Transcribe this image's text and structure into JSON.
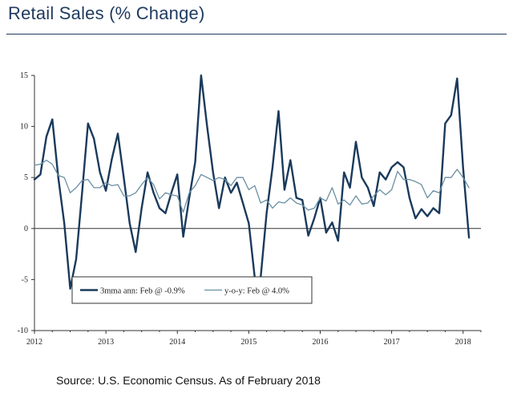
{
  "title": "Retail Sales (% Change)",
  "source": "Source: U.S. Economic Census. As of February 2018",
  "chart_data": {
    "type": "line",
    "title": "Retail Sales (% Change)",
    "xlabel": "",
    "ylabel": "",
    "ylim": [
      -10,
      15
    ],
    "yticks": [
      "-10",
      "-5",
      "0",
      "5",
      "10",
      "15"
    ],
    "xlim": [
      2012.0,
      2018.25
    ],
    "xticks": [
      "2012",
      "2013",
      "2014",
      "2015",
      "2016",
      "2017",
      "2018"
    ],
    "grid": false,
    "legend_position": "lower-left inside",
    "colors": {
      "mma": "#1a3a5c",
      "yoy": "#6a8fa3"
    },
    "series": [
      {
        "name": "3mma ann: Feb @ -0.9%",
        "x": [
          2012.0,
          2012.083,
          2012.167,
          2012.25,
          2012.333,
          2012.417,
          2012.5,
          2012.583,
          2012.667,
          2012.75,
          2012.833,
          2012.917,
          2013.0,
          2013.083,
          2013.167,
          2013.25,
          2013.333,
          2013.417,
          2013.5,
          2013.583,
          2013.667,
          2013.75,
          2013.833,
          2013.917,
          2014.0,
          2014.083,
          2014.167,
          2014.25,
          2014.333,
          2014.417,
          2014.5,
          2014.583,
          2014.667,
          2014.75,
          2014.833,
          2014.917,
          2015.0,
          2015.083,
          2015.167,
          2015.25,
          2015.333,
          2015.417,
          2015.5,
          2015.583,
          2015.667,
          2015.75,
          2015.833,
          2015.917,
          2016.0,
          2016.083,
          2016.167,
          2016.25,
          2016.333,
          2016.417,
          2016.5,
          2016.583,
          2016.667,
          2016.75,
          2016.833,
          2016.917,
          2017.0,
          2017.083,
          2017.167,
          2017.25,
          2017.333,
          2017.417,
          2017.5,
          2017.583,
          2017.667,
          2017.75,
          2017.833,
          2017.917,
          2018.0,
          2018.083
        ],
        "values": [
          4.8,
          5.3,
          9.0,
          10.7,
          5.0,
          0.5,
          -5.9,
          -3.0,
          3.5,
          10.3,
          8.8,
          5.5,
          3.7,
          6.8,
          9.3,
          5.0,
          0.5,
          -2.3,
          2.0,
          5.5,
          3.5,
          2.0,
          1.5,
          3.5,
          5.3,
          -0.8,
          3.0,
          6.5,
          15.0,
          10.0,
          5.5,
          2.0,
          5.0,
          3.5,
          4.5,
          2.5,
          0.5,
          -4.8,
          -4.8,
          1.5,
          6.0,
          11.5,
          3.8,
          6.7,
          3.0,
          2.8,
          -0.7,
          1.0,
          3.0,
          -0.4,
          0.6,
          -1.2,
          5.5,
          4.0,
          8.5,
          5.0,
          4.0,
          2.2,
          5.5,
          4.8,
          6.0,
          6.5,
          6.0,
          3.0,
          1.0,
          1.9,
          1.2,
          2.0,
          1.5,
          10.3,
          11.1,
          14.7,
          6.0,
          -0.9
        ]
      },
      {
        "name": "y-o-y: Feb @ 4.0%",
        "x": [
          2012.0,
          2012.083,
          2012.167,
          2012.25,
          2012.333,
          2012.417,
          2012.5,
          2012.583,
          2012.667,
          2012.75,
          2012.833,
          2012.917,
          2013.0,
          2013.083,
          2013.167,
          2013.25,
          2013.333,
          2013.417,
          2013.5,
          2013.583,
          2013.667,
          2013.75,
          2013.833,
          2013.917,
          2014.0,
          2014.083,
          2014.167,
          2014.25,
          2014.333,
          2014.417,
          2014.5,
          2014.583,
          2014.667,
          2014.75,
          2014.833,
          2014.917,
          2015.0,
          2015.083,
          2015.167,
          2015.25,
          2015.333,
          2015.417,
          2015.5,
          2015.583,
          2015.667,
          2015.75,
          2015.833,
          2015.917,
          2016.0,
          2016.083,
          2016.167,
          2016.25,
          2016.333,
          2016.417,
          2016.5,
          2016.583,
          2016.667,
          2016.75,
          2016.833,
          2016.917,
          2017.0,
          2017.083,
          2017.167,
          2017.25,
          2017.333,
          2017.417,
          2017.5,
          2017.583,
          2017.667,
          2017.75,
          2017.833,
          2017.917,
          2018.0,
          2018.083
        ],
        "values": [
          6.2,
          6.3,
          6.7,
          6.3,
          5.2,
          5.0,
          3.5,
          4.0,
          4.7,
          4.8,
          4.0,
          4.0,
          4.5,
          4.2,
          4.3,
          3.2,
          3.2,
          3.5,
          4.3,
          5.0,
          4.3,
          2.9,
          3.5,
          3.3,
          3.2,
          1.6,
          3.5,
          4.2,
          5.3,
          5.0,
          4.7,
          5.0,
          4.8,
          4.2,
          5.0,
          5.0,
          3.8,
          4.2,
          2.5,
          2.8,
          2.0,
          2.6,
          2.5,
          3.0,
          2.5,
          2.3,
          1.8,
          2.0,
          3.0,
          2.7,
          4.0,
          2.4,
          2.8,
          2.3,
          3.2,
          2.4,
          2.5,
          3.2,
          3.8,
          3.3,
          3.8,
          5.6,
          4.8,
          4.8,
          4.6,
          4.3,
          3.0,
          3.7,
          3.5,
          5.0,
          5.0,
          5.8,
          5.0,
          4.0
        ]
      }
    ]
  }
}
